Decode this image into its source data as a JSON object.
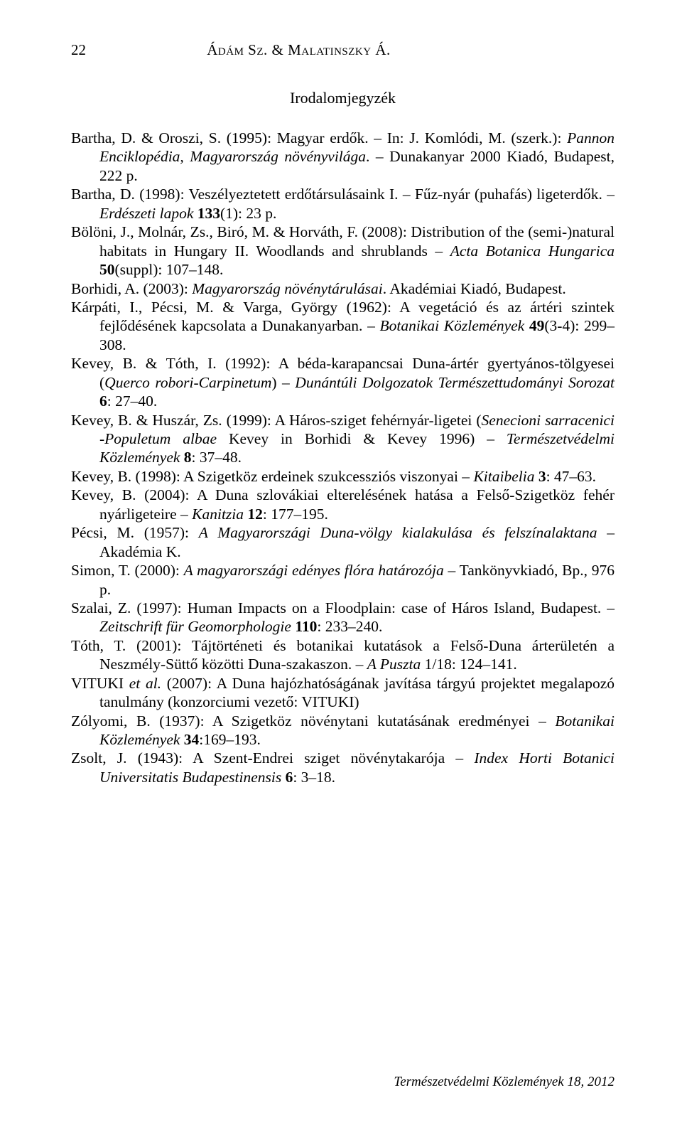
{
  "header": {
    "page_number": "22",
    "authors": "Ádám Sz. & Malatinszky Á."
  },
  "section_title": "Irodalomjegyzék",
  "references": [
    {
      "html": "Bartha, D. & Oroszi, S. (1995): Magyar erdők. – In: J. Komlódi, M. (szerk.): <span class='italic'>Pannon Enciklopédia, Magyarország növényvilága</span>. – Dunakanyar 2000 Kiadó, Budapest, 222 p."
    },
    {
      "html": "Bartha, D. (1998): Veszélyeztetett erdőtársulásaink I. – Fűz-nyár (puhafás) ligeterdők. – <span class='italic'>Erdészeti lapok</span> <span class='bold'>133</span>(1): 23 p."
    },
    {
      "html": "Bölöni, J., Molnár, Zs., Biró, M. & Horváth, F. (2008): Distribution of the (semi-)natural habitats in Hungary II. Woodlands and shrublands – <span class='italic'>Acta Botanica Hungarica</span> <span class='bold'>50</span>(suppl): 107–148."
    },
    {
      "html": "Borhidi, A. (2003): <span class='italic'>Magyarország növénytárulásai</span>. Akadémiai Kiadó, Budapest."
    },
    {
      "html": "Kárpáti, I., Pécsi, M. & Varga, György (1962): A vegetáció és az ártéri szintek fejlődésének kapcsolata a Dunakanyarban. – <span class='italic'>Botanikai Közlemények</span> <span class='bold'>49</span>(3-4): 299–308."
    },
    {
      "html": "Kevey, B. & Tóth, I. (1992): A béda-karapancsai Duna-ártér gyertyános-tölgyesei (<span class='italic'>Querco robori-Carpinetum</span>) – <span class='italic'>Dunántúli Dolgozatok Természettudományi Sorozat</span> <span class='bold'>6</span>: 27–40."
    },
    {
      "html": "Kevey, B. & Huszár, Zs. (1999): A Háros-sziget fehérnyár-ligetei (<span class='italic'>Senecioni sarracenici -Populetum albae</span> Kevey in Borhidi & Kevey 1996) – <span class='italic'>Természetvédelmi Közlemények</span> <span class='bold'>8</span>: 37–48."
    },
    {
      "html": "Kevey, B. (1998): A Szigetköz erdeinek szukcessziós viszonyai – <span class='italic'>Kitaibelia</span> <span class='bold'>3</span>: 47–63."
    },
    {
      "html": "Kevey, B. (2004): A Duna szlovákiai elterelésének hatása a Felső-Szigetköz fehér nyárligeteire – <span class='italic'>Kanitzia</span> <span class='bold'>12</span>: 177–195."
    },
    {
      "html": "Pécsi, M. (1957): <span class='italic'>A Magyarországi Duna-völgy kialakulása és felszínalaktana</span> – Akadémia K."
    },
    {
      "html": "Simon, T. (2000): <span class='italic'>A magyarországi edényes flóra határozója</span> – Tankönyvkiadó, Bp., 976 p."
    },
    {
      "html": "Szalai, Z. (1997): Human Impacts on a Floodplain: case of Háros Island, Budapest. – <span class='italic'>Zeitschrift für Geomorphologie</span> <span class='bold'>110</span>: 233–240."
    },
    {
      "html": "Tóth, T. (2001): Tájtörténeti és botanikai kutatások a Felső-Duna árterületén a Neszmély-Süttő közötti Duna-szakaszon. – <span class='italic'>A Puszta</span> 1/18: 124–141."
    },
    {
      "html": "VITUKI <span class='italic'>et al.</span> (2007): A Duna hajózhatóságának javítása tárgyú projektet megalapozó tanulmány (konzorciumi vezető: VITUKI)"
    },
    {
      "html": "Zólyomi, B. (1937): A Szigetköz növénytani kutatásának eredményei – <span class='italic'>Botanikai Közlemények</span> <span class='bold'>34</span>:169–193."
    },
    {
      "html": "Zsolt, J. (1943): A Szent-Endrei sziget növénytakarója – <span class='italic'>Index Horti Botanici Universitatis Budapestinensis</span> <span class='bold'>6</span>: 3–18."
    }
  ],
  "footer": "Természetvédelmi Közlemények 18, 2012"
}
